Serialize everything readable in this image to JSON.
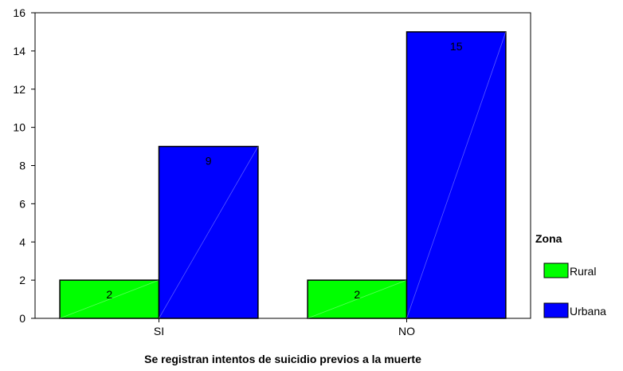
{
  "chart_data": {
    "type": "bar",
    "categories": [
      "SI",
      "NO"
    ],
    "series": [
      {
        "name": "Rural",
        "values": [
          2,
          2
        ],
        "color": "#00ff00"
      },
      {
        "name": "Urbana",
        "values": [
          9,
          15
        ],
        "color": "#0000ff"
      }
    ],
    "data_labels": [
      [
        "2",
        "2"
      ],
      [
        "9",
        "15"
      ]
    ],
    "xlabel": "Se registran intentos de suicidio previos a la muerte",
    "ylabel": "",
    "ylim": [
      0,
      16
    ],
    "yticks": [
      0,
      2,
      4,
      6,
      8,
      10,
      12,
      14,
      16
    ],
    "ytick_labels": [
      "0",
      "2",
      "4",
      "6",
      "8",
      "10",
      "12",
      "14",
      "16"
    ],
    "grid": false,
    "legend": {
      "title": "Zona",
      "placement": "right"
    }
  }
}
